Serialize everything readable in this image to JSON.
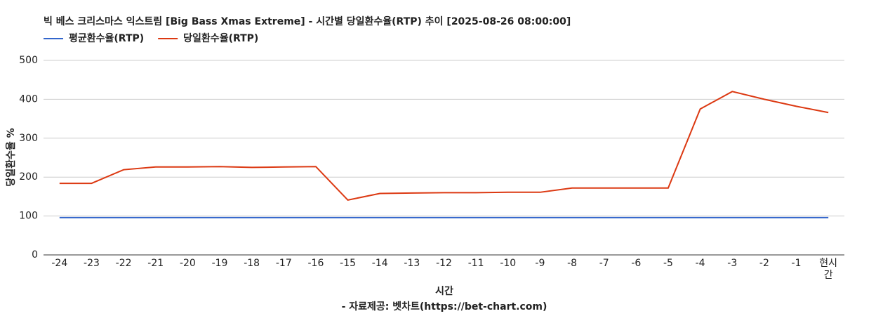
{
  "chart_data": {
    "type": "line",
    "title": "빅 베스 크리스마스 익스트림 [Big Bass Xmas Extreme] - 시간별 당일환수율(RTP) 추이 [2025-08-26 08:00:00]",
    "x_label": "시간",
    "y_label": "당일환수율 %",
    "source": "- 자료제공: 벳차트(https://bet-chart.com)",
    "categories": [
      "-24",
      "-23",
      "-22",
      "-21",
      "-20",
      "-19",
      "-18",
      "-17",
      "-16",
      "-15",
      "-14",
      "-13",
      "-12",
      "-11",
      "-10",
      "-9",
      "-8",
      "-7",
      "-6",
      "-5",
      "-4",
      "-3",
      "-2",
      "-1",
      "현시간"
    ],
    "series": [
      {
        "name": "평균환수율(RTP)",
        "color": "#3366cc",
        "values": [
          96,
          96,
          96,
          96,
          96,
          96,
          96,
          96,
          96,
          96,
          96,
          96,
          96,
          96,
          96,
          96,
          96,
          96,
          96,
          96,
          96,
          96,
          96,
          96,
          96
        ]
      },
      {
        "name": "당일환수율(RTP)",
        "color": "#dc3912",
        "values": [
          184,
          184,
          219,
          226,
          226,
          227,
          225,
          226,
          227,
          141,
          158,
          159,
          160,
          160,
          161,
          161,
          172,
          172,
          172,
          172,
          375,
          420,
          400,
          382,
          366
        ]
      }
    ],
    "ylim": [
      0,
      500
    ],
    "yticks": [
      0,
      100,
      200,
      300,
      400,
      500
    ],
    "grid": true,
    "legend": "top-left"
  }
}
